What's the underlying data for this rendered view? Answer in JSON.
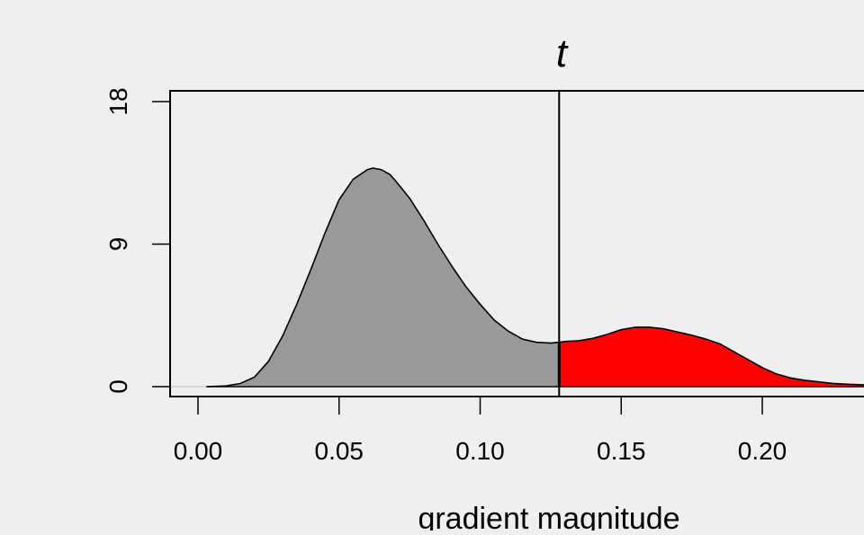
{
  "chart_data": {
    "type": "area",
    "title": "t",
    "xlabel": "gradient magnitude",
    "ylabel": "",
    "xlim": [
      -0.01,
      0.24
    ],
    "ylim": [
      -0.7,
      18.0
    ],
    "x_ticks": [
      "0.00",
      "0.05",
      "0.10",
      "0.15",
      "0.20"
    ],
    "x_tick_values": [
      0.0,
      0.05,
      0.1,
      0.15,
      0.2
    ],
    "y_ticks": [
      "0",
      "9",
      "18"
    ],
    "y_tick_values": [
      0,
      9,
      18
    ],
    "threshold": 0.128,
    "grid": false,
    "colors": {
      "background": "#efefef",
      "below_threshold_fill": "#999999",
      "above_threshold_fill": "#ff0000",
      "line": "#000000"
    },
    "series": [
      {
        "x": [
          0.003,
          0.01,
          0.015,
          0.02,
          0.025,
          0.03,
          0.035,
          0.04,
          0.045,
          0.05,
          0.055,
          0.06,
          0.062,
          0.065,
          0.068,
          0.07,
          0.075,
          0.08,
          0.085,
          0.09,
          0.095,
          0.1,
          0.105,
          0.11,
          0.115,
          0.12,
          0.125,
          0.128,
          0.13,
          0.135,
          0.14,
          0.145,
          0.15,
          0.155,
          0.16,
          0.165,
          0.17,
          0.175,
          0.18,
          0.185,
          0.19,
          0.195,
          0.2,
          0.205,
          0.21,
          0.215,
          0.22,
          0.225,
          0.23,
          0.24
        ],
        "y": [
          0.0,
          0.05,
          0.2,
          0.6,
          1.6,
          3.2,
          5.2,
          7.4,
          9.7,
          11.8,
          13.1,
          13.7,
          13.8,
          13.7,
          13.4,
          13.0,
          11.9,
          10.5,
          9.0,
          7.6,
          6.3,
          5.2,
          4.2,
          3.5,
          3.0,
          2.8,
          2.75,
          2.8,
          2.85,
          2.9,
          3.05,
          3.3,
          3.6,
          3.75,
          3.75,
          3.65,
          3.45,
          3.25,
          3.0,
          2.7,
          2.2,
          1.7,
          1.2,
          0.8,
          0.55,
          0.4,
          0.3,
          0.2,
          0.15,
          0.08
        ]
      }
    ]
  }
}
